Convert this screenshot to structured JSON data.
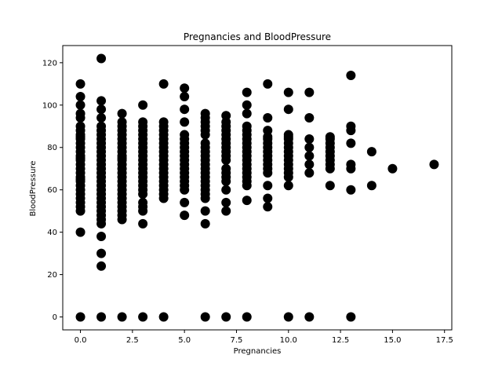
{
  "chart_data": {
    "type": "scatter",
    "title": "Pregnancies and BloodPressure",
    "xlabel": "Pregnancies",
    "ylabel": "BloodPressure",
    "xlim": [
      -0.85,
      17.85
    ],
    "ylim": [
      -6.1,
      128.1
    ],
    "grid": false,
    "marker_color": "#000000",
    "x_ticks": [
      0,
      2.5,
      5,
      7.5,
      10,
      12.5,
      15,
      17.5
    ],
    "x_tick_labels": [
      "0.0",
      "2.5",
      "5.0",
      "7.5",
      "10.0",
      "12.5",
      "15.0",
      "17.5"
    ],
    "y_ticks": [
      0,
      20,
      40,
      60,
      80,
      100,
      120
    ],
    "y_tick_labels": [
      "0",
      "20",
      "40",
      "60",
      "80",
      "100",
      "120"
    ],
    "points": [
      [
        0,
        0
      ],
      [
        0,
        40
      ],
      [
        0,
        50
      ],
      [
        0,
        52
      ],
      [
        0,
        54
      ],
      [
        0,
        56
      ],
      [
        0,
        58
      ],
      [
        0,
        60
      ],
      [
        0,
        62
      ],
      [
        0,
        64
      ],
      [
        0,
        65
      ],
      [
        0,
        66
      ],
      [
        0,
        68
      ],
      [
        0,
        70
      ],
      [
        0,
        72
      ],
      [
        0,
        74
      ],
      [
        0,
        75
      ],
      [
        0,
        76
      ],
      [
        0,
        78
      ],
      [
        0,
        80
      ],
      [
        0,
        82
      ],
      [
        0,
        84
      ],
      [
        0,
        85
      ],
      [
        0,
        86
      ],
      [
        0,
        88
      ],
      [
        0,
        90
      ],
      [
        0,
        94
      ],
      [
        0,
        96
      ],
      [
        0,
        100
      ],
      [
        0,
        104
      ],
      [
        0,
        110
      ],
      [
        1,
        0
      ],
      [
        1,
        24
      ],
      [
        1,
        30
      ],
      [
        1,
        38
      ],
      [
        1,
        44
      ],
      [
        1,
        46
      ],
      [
        1,
        48
      ],
      [
        1,
        50
      ],
      [
        1,
        52
      ],
      [
        1,
        54
      ],
      [
        1,
        56
      ],
      [
        1,
        58
      ],
      [
        1,
        60
      ],
      [
        1,
        62
      ],
      [
        1,
        64
      ],
      [
        1,
        66
      ],
      [
        1,
        68
      ],
      [
        1,
        70
      ],
      [
        1,
        72
      ],
      [
        1,
        74
      ],
      [
        1,
        76
      ],
      [
        1,
        78
      ],
      [
        1,
        80
      ],
      [
        1,
        82
      ],
      [
        1,
        84
      ],
      [
        1,
        86
      ],
      [
        1,
        88
      ],
      [
        1,
        90
      ],
      [
        1,
        94
      ],
      [
        1,
        98
      ],
      [
        1,
        102
      ],
      [
        1,
        122
      ],
      [
        2,
        0
      ],
      [
        2,
        46
      ],
      [
        2,
        48
      ],
      [
        2,
        50
      ],
      [
        2,
        52
      ],
      [
        2,
        54
      ],
      [
        2,
        56
      ],
      [
        2,
        58
      ],
      [
        2,
        60
      ],
      [
        2,
        62
      ],
      [
        2,
        64
      ],
      [
        2,
        66
      ],
      [
        2,
        68
      ],
      [
        2,
        70
      ],
      [
        2,
        72
      ],
      [
        2,
        74
      ],
      [
        2,
        75
      ],
      [
        2,
        76
      ],
      [
        2,
        78
      ],
      [
        2,
        80
      ],
      [
        2,
        82
      ],
      [
        2,
        84
      ],
      [
        2,
        86
      ],
      [
        2,
        88
      ],
      [
        2,
        90
      ],
      [
        2,
        92
      ],
      [
        2,
        96
      ],
      [
        3,
        0
      ],
      [
        3,
        44
      ],
      [
        3,
        50
      ],
      [
        3,
        52
      ],
      [
        3,
        54
      ],
      [
        3,
        58
      ],
      [
        3,
        60
      ],
      [
        3,
        62
      ],
      [
        3,
        64
      ],
      [
        3,
        66
      ],
      [
        3,
        68
      ],
      [
        3,
        70
      ],
      [
        3,
        72
      ],
      [
        3,
        74
      ],
      [
        3,
        76
      ],
      [
        3,
        78
      ],
      [
        3,
        80
      ],
      [
        3,
        82
      ],
      [
        3,
        84
      ],
      [
        3,
        86
      ],
      [
        3,
        88
      ],
      [
        3,
        90
      ],
      [
        3,
        92
      ],
      [
        3,
        100
      ],
      [
        4,
        0
      ],
      [
        4,
        56
      ],
      [
        4,
        58
      ],
      [
        4,
        60
      ],
      [
        4,
        62
      ],
      [
        4,
        64
      ],
      [
        4,
        66
      ],
      [
        4,
        68
      ],
      [
        4,
        70
      ],
      [
        4,
        72
      ],
      [
        4,
        74
      ],
      [
        4,
        76
      ],
      [
        4,
        78
      ],
      [
        4,
        80
      ],
      [
        4,
        82
      ],
      [
        4,
        84
      ],
      [
        4,
        86
      ],
      [
        4,
        88
      ],
      [
        4,
        90
      ],
      [
        4,
        92
      ],
      [
        4,
        110
      ],
      [
        5,
        48
      ],
      [
        5,
        54
      ],
      [
        5,
        60
      ],
      [
        5,
        62
      ],
      [
        5,
        64
      ],
      [
        5,
        66
      ],
      [
        5,
        68
      ],
      [
        5,
        70
      ],
      [
        5,
        72
      ],
      [
        5,
        74
      ],
      [
        5,
        76
      ],
      [
        5,
        78
      ],
      [
        5,
        80
      ],
      [
        5,
        82
      ],
      [
        5,
        84
      ],
      [
        5,
        86
      ],
      [
        5,
        92
      ],
      [
        5,
        98
      ],
      [
        5,
        104
      ],
      [
        5,
        108
      ],
      [
        6,
        0
      ],
      [
        6,
        44
      ],
      [
        6,
        50
      ],
      [
        6,
        56
      ],
      [
        6,
        58
      ],
      [
        6,
        60
      ],
      [
        6,
        62
      ],
      [
        6,
        64
      ],
      [
        6,
        66
      ],
      [
        6,
        68
      ],
      [
        6,
        70
      ],
      [
        6,
        72
      ],
      [
        6,
        74
      ],
      [
        6,
        76
      ],
      [
        6,
        78
      ],
      [
        6,
        80
      ],
      [
        6,
        82
      ],
      [
        6,
        86
      ],
      [
        6,
        88
      ],
      [
        6,
        90
      ],
      [
        6,
        92
      ],
      [
        6,
        94
      ],
      [
        6,
        96
      ],
      [
        7,
        0
      ],
      [
        7,
        50
      ],
      [
        7,
        54
      ],
      [
        7,
        60
      ],
      [
        7,
        64
      ],
      [
        7,
        66
      ],
      [
        7,
        68
      ],
      [
        7,
        70
      ],
      [
        7,
        74
      ],
      [
        7,
        76
      ],
      [
        7,
        78
      ],
      [
        7,
        80
      ],
      [
        7,
        82
      ],
      [
        7,
        84
      ],
      [
        7,
        86
      ],
      [
        7,
        88
      ],
      [
        7,
        90
      ],
      [
        7,
        92
      ],
      [
        7,
        95
      ],
      [
        8,
        0
      ],
      [
        8,
        55
      ],
      [
        8,
        62
      ],
      [
        8,
        64
      ],
      [
        8,
        66
      ],
      [
        8,
        68
      ],
      [
        8,
        70
      ],
      [
        8,
        72
      ],
      [
        8,
        74
      ],
      [
        8,
        76
      ],
      [
        8,
        78
      ],
      [
        8,
        80
      ],
      [
        8,
        82
      ],
      [
        8,
        84
      ],
      [
        8,
        86
      ],
      [
        8,
        88
      ],
      [
        8,
        90
      ],
      [
        8,
        96
      ],
      [
        8,
        100
      ],
      [
        8,
        106
      ],
      [
        9,
        52
      ],
      [
        9,
        56
      ],
      [
        9,
        62
      ],
      [
        9,
        68
      ],
      [
        9,
        70
      ],
      [
        9,
        72
      ],
      [
        9,
        74
      ],
      [
        9,
        76
      ],
      [
        9,
        78
      ],
      [
        9,
        80
      ],
      [
        9,
        82
      ],
      [
        9,
        84
      ],
      [
        9,
        85
      ],
      [
        9,
        88
      ],
      [
        9,
        94
      ],
      [
        9,
        110
      ],
      [
        10,
        0
      ],
      [
        10,
        62
      ],
      [
        10,
        66
      ],
      [
        10,
        68
      ],
      [
        10,
        70
      ],
      [
        10,
        72
      ],
      [
        10,
        74
      ],
      [
        10,
        76
      ],
      [
        10,
        78
      ],
      [
        10,
        80
      ],
      [
        10,
        82
      ],
      [
        10,
        84
      ],
      [
        10,
        85
      ],
      [
        10,
        86
      ],
      [
        10,
        98
      ],
      [
        10,
        106
      ],
      [
        11,
        0
      ],
      [
        11,
        68
      ],
      [
        11,
        72
      ],
      [
        11,
        76
      ],
      [
        11,
        80
      ],
      [
        11,
        84
      ],
      [
        11,
        94
      ],
      [
        11,
        106
      ],
      [
        12,
        62
      ],
      [
        12,
        70
      ],
      [
        12,
        72
      ],
      [
        12,
        74
      ],
      [
        12,
        76
      ],
      [
        12,
        78
      ],
      [
        12,
        80
      ],
      [
        12,
        82
      ],
      [
        12,
        84
      ],
      [
        12,
        85
      ],
      [
        13,
        0
      ],
      [
        13,
        60
      ],
      [
        13,
        70
      ],
      [
        13,
        72
      ],
      [
        13,
        82
      ],
      [
        13,
        88
      ],
      [
        13,
        90
      ],
      [
        13,
        114
      ],
      [
        14,
        62
      ],
      [
        14,
        78
      ],
      [
        15,
        70
      ],
      [
        17,
        72
      ]
    ]
  }
}
